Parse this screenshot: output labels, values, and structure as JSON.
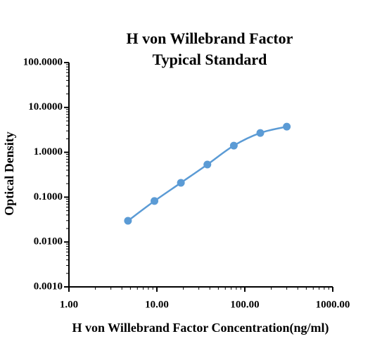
{
  "chart_data": {
    "type": "line",
    "title": [
      "H von Willebrand Factor",
      "Typical Standard"
    ],
    "x_label": "H von Willebrand Factor Concentration(ng/ml)",
    "y_label": "Optical Density",
    "x": [
      4.69,
      9.38,
      18.75,
      37.5,
      75,
      150,
      300
    ],
    "series": [
      {
        "color": "#5b9bd5",
        "values": [
          0.0297,
          0.082,
          0.209,
          0.534,
          1.41,
          2.7,
          3.73
        ]
      }
    ],
    "log_x": true,
    "log_y": true,
    "markers": true,
    "smooth": true,
    "xlim": [
      1,
      1000
    ],
    "xticks": [
      {
        "value": 1,
        "label": "1.00"
      },
      {
        "value": 10,
        "label": "10.00"
      },
      {
        "value": 100,
        "label": "100.00"
      },
      {
        "value": 1000,
        "label": "1000.00"
      }
    ],
    "ylim": [
      0.001,
      100
    ],
    "yticks": [
      {
        "value": 0.001,
        "label": "0.0010"
      },
      {
        "value": 0.01,
        "label": "0.0100"
      },
      {
        "value": 0.1,
        "label": "0.1000"
      },
      {
        "value": 1,
        "label": "1.0000"
      },
      {
        "value": 10,
        "label": "10.0000"
      },
      {
        "value": 100,
        "label": "100.0000"
      }
    ]
  }
}
